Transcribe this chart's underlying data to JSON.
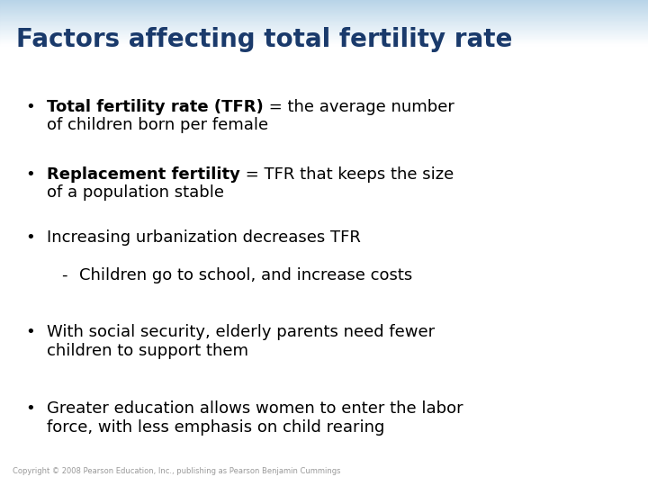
{
  "title": "Factors affecting total fertility rate",
  "title_color": "#1a3a6b",
  "title_fontsize": 20,
  "background_top_color": "#b8d4e8",
  "background_bottom_color": "#ffffff",
  "body_text_color": "#000000",
  "copyright": "Copyright © 2008 Pearson Education, Inc., publishing as Pearson Benjamin Cummings",
  "fontsize": 13,
  "bullet_points": [
    {
      "bullet": "•",
      "bold_part": "Total fertility rate (TFR)",
      "normal_part": " = the average number\nof children born per female",
      "indent": 0
    },
    {
      "bullet": "•",
      "bold_part": "Replacement fertility",
      "normal_part": " = TFR that keeps the size\nof a population stable",
      "indent": 0
    },
    {
      "bullet": "•",
      "bold_part": "",
      "normal_part": "Increasing urbanization decreases TFR",
      "indent": 0
    },
    {
      "bullet": "-",
      "bold_part": "",
      "normal_part": "Children go to school, and increase costs",
      "indent": 1
    },
    {
      "bullet": "•",
      "bold_part": "",
      "normal_part": "With social security, elderly parents need fewer\nchildren to support them",
      "indent": 0
    },
    {
      "bullet": "•",
      "bold_part": "",
      "normal_part": "Greater education allows women to enter the labor\nforce, with less emphasis on child rearing",
      "indent": 0
    }
  ]
}
